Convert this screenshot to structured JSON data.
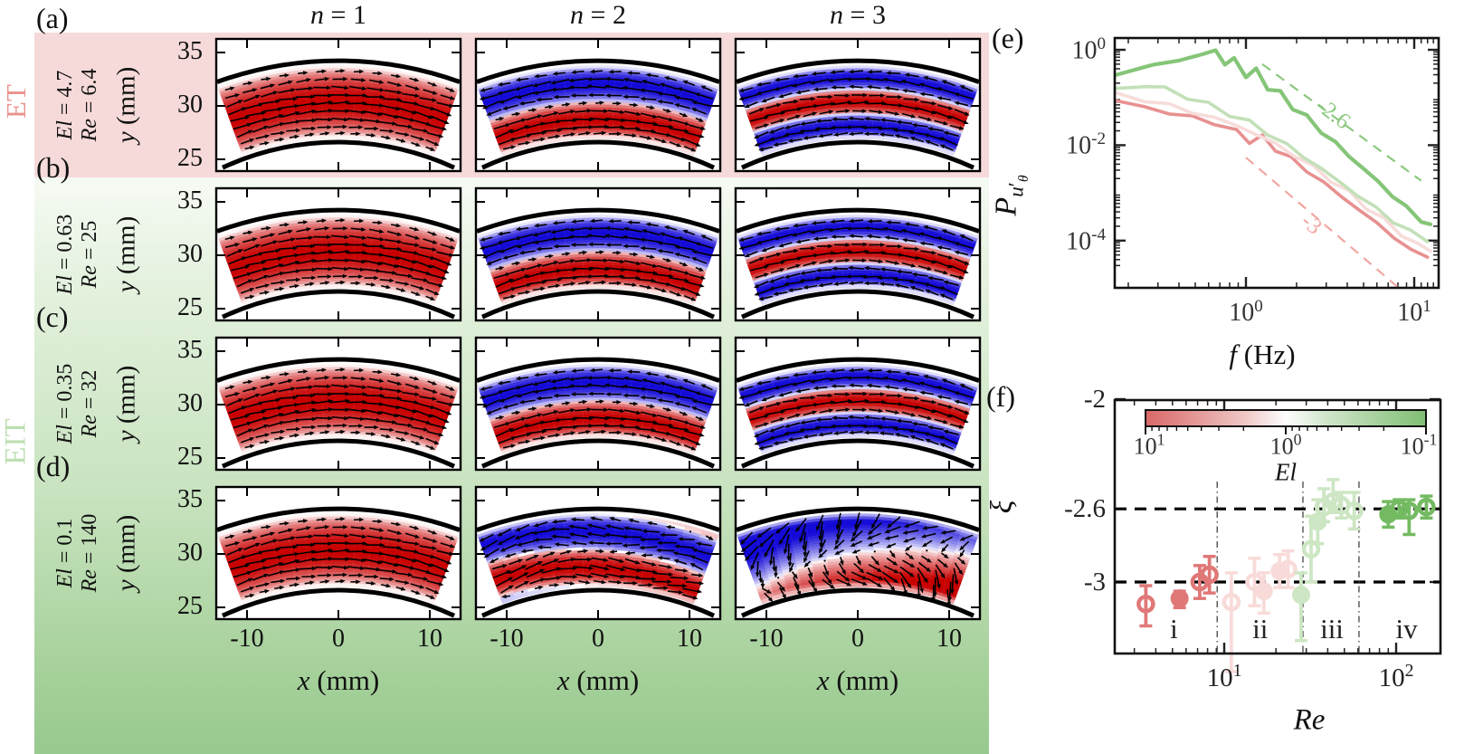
{
  "figure": {
    "column_headers": [
      "n = 1",
      "n = 2",
      "n = 3"
    ],
    "regime_et": "ET",
    "regime_eit": "EIT",
    "colors": {
      "et_label": "#ea918d",
      "eit_label": "#bcdfb0",
      "band_pink": "#f6dada",
      "band_green_top": "#f6faf4",
      "band_green_bottom": "#98c98f",
      "heat_red": "#c80000",
      "heat_blue": "#140ad7"
    },
    "ylabel": "y (mm)",
    "yticks": [
      "35",
      "30",
      "25"
    ],
    "xlabel": "x (mm)",
    "xticks": [
      "-10",
      "0",
      "10"
    ],
    "rows": [
      {
        "letter": "(a)",
        "el": "El = 4.7",
        "re": "Re = 6.4",
        "modes": [
          "R",
          "BR",
          "BRB"
        ]
      },
      {
        "letter": "(b)",
        "el": "El = 0.63",
        "re": "Re = 25",
        "modes": [
          "R",
          "BR",
          "BRB"
        ]
      },
      {
        "letter": "(c)",
        "el": "El = 0.35",
        "re": "Re = 32",
        "modes": [
          "R",
          "BR",
          "BRB"
        ]
      },
      {
        "letter": "(d)",
        "el": "El = 0.1",
        "re": "Re = 140",
        "modes": [
          "R",
          "BRt",
          "DIAG"
        ]
      }
    ]
  },
  "panel_e": {
    "letter": "(e)",
    "xlabel": "f (Hz)",
    "ylabel_parts": {
      "main": "P",
      "sub": "u",
      "prime": "′",
      "subsub": "θ"
    },
    "xtick_labels": [
      "10^0",
      "10^1"
    ],
    "ytick_labels": [
      "10^0",
      "10^-2",
      "10^-4"
    ]
  },
  "panel_f": {
    "letter": "(f)",
    "xlabel": "Re",
    "ylabel": "ξ",
    "xtick_labels": [
      "10^1",
      "10^2"
    ],
    "ytick_labels": [
      "-2",
      "-2.6",
      "-3"
    ],
    "colorbar_label": "El",
    "colorbar_tick_labels": [
      "10^1",
      "10^0",
      "10^-1"
    ],
    "region_labels": [
      "i",
      "ii",
      "iii",
      "iv"
    ]
  },
  "chart_data": [
    {
      "id": "e",
      "type": "line",
      "xlabel": "f (Hz)",
      "ylabel": "P_{u'_theta}",
      "xscale": "log",
      "yscale": "log",
      "xlim": [
        0.17,
        13.5
      ],
      "ylim": [
        2e-05,
        1.3
      ],
      "grid": false,
      "legend": "none",
      "xticks": [
        {
          "v": 1,
          "label": "10^0"
        },
        {
          "v": 10,
          "label": "10^1"
        }
      ],
      "yticks": [
        {
          "v": 1,
          "label": "10^0"
        },
        {
          "v": 0.01,
          "label": "10^-2"
        },
        {
          "v": 0.0001,
          "label": "10^-4"
        }
      ],
      "series": [
        {
          "name": "El = 4.7, Re = 6.4",
          "color": "#e89090",
          "width": 3.6,
          "amp": 0.13,
          "points": [
            [
              0.17,
              0.085
            ],
            [
              0.25,
              0.062
            ],
            [
              0.35,
              0.048
            ],
            [
              0.48,
              0.038
            ],
            [
              0.65,
              0.03
            ],
            [
              0.88,
              0.019
            ],
            [
              1.05,
              0.0125
            ],
            [
              1.25,
              0.0145
            ],
            [
              1.5,
              0.0085
            ],
            [
              1.85,
              0.0052
            ],
            [
              2.3,
              0.003
            ],
            [
              2.9,
              0.0016
            ],
            [
              3.7,
              0.00085
            ],
            [
              4.7,
              0.00044
            ],
            [
              6.0,
              0.00023
            ],
            [
              7.6,
              0.00012
            ],
            [
              9.6,
              6e-05
            ],
            [
              12.0,
              4.5e-05
            ]
          ]
        },
        {
          "name": "El = 0.63, Re = 25",
          "color": "#f7dcda",
          "width": 3.6,
          "amp": 0.13,
          "points": [
            [
              0.17,
              0.125
            ],
            [
              0.25,
              0.092
            ],
            [
              0.35,
              0.068
            ],
            [
              0.48,
              0.05
            ],
            [
              0.65,
              0.037
            ],
            [
              0.88,
              0.026
            ],
            [
              1.15,
              0.017
            ],
            [
              1.5,
              0.0105
            ],
            [
              1.95,
              0.0062
            ],
            [
              2.5,
              0.0035
            ],
            [
              3.2,
              0.0019
            ],
            [
              4.1,
              0.001
            ],
            [
              5.2,
              0.00052
            ],
            [
              6.6,
              0.00027
            ],
            [
              8.4,
              0.00014
            ],
            [
              10.5,
              8e-05
            ],
            [
              12.5,
              6e-05
            ]
          ]
        },
        {
          "name": "El = 0.35, Re = 32",
          "color": "#c3e0b8",
          "width": 3.6,
          "amp": 0.13,
          "points": [
            [
              0.17,
              0.155
            ],
            [
              0.25,
              0.185
            ],
            [
              0.33,
              0.15
            ],
            [
              0.45,
              0.105
            ],
            [
              0.6,
              0.07
            ],
            [
              0.8,
              0.046
            ],
            [
              1.05,
              0.03
            ],
            [
              1.35,
              0.018
            ],
            [
              1.75,
              0.01
            ],
            [
              2.2,
              0.0058
            ],
            [
              2.8,
              0.0032
            ],
            [
              3.6,
              0.0017
            ],
            [
              4.6,
              0.0009
            ],
            [
              5.9,
              0.00048
            ],
            [
              7.5,
              0.00026
            ],
            [
              9.5,
              0.00015
            ],
            [
              12.0,
              9.5e-05
            ]
          ]
        },
        {
          "name": "El = 0.1, Re = 140",
          "color": "#85c578",
          "width": 4.2,
          "amp": 0.15,
          "points": [
            [
              0.17,
              0.3
            ],
            [
              0.28,
              0.45
            ],
            [
              0.4,
              0.62
            ],
            [
              0.55,
              0.8
            ],
            [
              0.66,
              0.95
            ],
            [
              0.75,
              0.52
            ],
            [
              0.85,
              0.62
            ],
            [
              1.0,
              0.3
            ],
            [
              1.15,
              0.36
            ],
            [
              1.35,
              0.17
            ],
            [
              1.6,
              0.12
            ],
            [
              1.9,
              0.065
            ],
            [
              2.3,
              0.038
            ],
            [
              2.8,
              0.02
            ],
            [
              3.4,
              0.011
            ],
            [
              4.1,
              0.006
            ],
            [
              5.0,
              0.0032
            ],
            [
              6.1,
              0.0017
            ],
            [
              7.4,
              0.0009
            ],
            [
              9.0,
              0.00048
            ],
            [
              11.0,
              0.00028
            ],
            [
              12.5,
              0.00022
            ]
          ]
        }
      ],
      "guides": [
        {
          "label": "-2.6",
          "slope": -2.6,
          "color": "#8cc87e",
          "points": [
            [
              1.25,
              0.5
            ],
            [
              11,
              0.0018
            ]
          ],
          "label_at": [
            3.3,
            0.045
          ],
          "label_rot": 37
        },
        {
          "label": "-3",
          "slope": -3,
          "color": "#f2a6a2",
          "points": [
            [
              1.0,
              0.0055
            ],
            [
              8.5,
              8.8e-06
            ]
          ],
          "label_at": [
            2.45,
            0.00022
          ],
          "label_rot": 40
        }
      ]
    },
    {
      "id": "f",
      "type": "scatter",
      "xlabel": "Re",
      "ylabel": "xi",
      "xscale": "log",
      "yscale": "linear",
      "xlim": [
        2.3,
        181
      ],
      "ylim": [
        -3.45,
        -1.99
      ],
      "xticks": [
        {
          "v": 10,
          "label": "10^1"
        },
        {
          "v": 100,
          "label": "10^2"
        }
      ],
      "yticks": [
        {
          "v": -2,
          "label": "-2"
        },
        {
          "v": -2.6,
          "label": "-2.6"
        },
        {
          "v": -3,
          "label": "-3"
        }
      ],
      "hlines": [
        -2.6,
        -3
      ],
      "vlines": [
        9.1,
        28.7,
        60.8
      ],
      "regions": [
        {
          "label": "i",
          "x": 5.1
        },
        {
          "label": "ii",
          "x": 16.2
        },
        {
          "label": "iii",
          "x": 42.3
        },
        {
          "label": "iv",
          "x": 115
        }
      ],
      "colorbar": {
        "label": "El",
        "log_range": [
          1,
          -1
        ],
        "tick_labels": [
          "10^1",
          "10^0",
          "10^-1"
        ],
        "color_left": "#d96868",
        "color_mid": "#fdfdfd",
        "color_right": "#7fbe72"
      },
      "group_colors": {
        "red": "#e07878",
        "pink": "#f8dbd9",
        "pgreen": "#cde6c3",
        "green": "#74ba62"
      },
      "points": [
        {
          "re": 3.5,
          "xi": -3.12,
          "err": [
            0.1,
            0.12
          ],
          "group": "red",
          "filled": false
        },
        {
          "re": 5.5,
          "xi": -3.09,
          "err": [
            0.04,
            0.05
          ],
          "group": "red",
          "filled": true
        },
        {
          "re": 7.2,
          "xi": -3.0,
          "err": [
            0.09,
            0.09
          ],
          "group": "red",
          "filled": false
        },
        {
          "re": 8.2,
          "xi": -2.96,
          "err": [
            0.1,
            0.1
          ],
          "group": "red",
          "filled": false
        },
        {
          "re": 11,
          "xi": -3.11,
          "err": [
            0.16,
            0.38
          ],
          "group": "pink",
          "filled": false
        },
        {
          "re": 15,
          "xi": -3.0,
          "err": [
            0.13,
            0.13
          ],
          "group": "pink",
          "filled": false
        },
        {
          "re": 17,
          "xi": -3.05,
          "err": [
            0.1,
            0.12
          ],
          "group": "pink",
          "filled": true
        },
        {
          "re": 21,
          "xi": -2.94,
          "err": [
            0.09,
            0.09
          ],
          "group": "pink",
          "filled": true
        },
        {
          "re": 23.5,
          "xi": -2.93,
          "err": [
            0.1,
            0.1
          ],
          "group": "pink",
          "filled": false
        },
        {
          "re": 28,
          "xi": -3.07,
          "err": [
            0.12,
            0.25
          ],
          "group": "pgreen",
          "filled": true
        },
        {
          "re": 32,
          "xi": -2.82,
          "err": [
            0.18,
            0.18
          ],
          "group": "pgreen",
          "filled": false
        },
        {
          "re": 35,
          "xi": -2.67,
          "err": [
            0.12,
            0.12
          ],
          "group": "pgreen",
          "filled": true
        },
        {
          "re": 38,
          "xi": -2.59,
          "err": [
            0.1,
            0.08
          ],
          "group": "pgreen",
          "filled": false
        },
        {
          "re": 43,
          "xi": -2.56,
          "err": [
            0.12,
            0.06
          ],
          "group": "pgreen",
          "filled": false
        },
        {
          "re": 48,
          "xi": -2.58,
          "err": [
            0.07,
            0.07
          ],
          "group": "pgreen",
          "filled": false
        },
        {
          "re": 57,
          "xi": -2.61,
          "err": [
            0.1,
            0.1
          ],
          "group": "pgreen",
          "filled": false
        },
        {
          "re": 90,
          "xi": -2.63,
          "err": [
            0.07,
            0.07
          ],
          "group": "green",
          "filled": true
        },
        {
          "re": 104,
          "xi": -2.6,
          "err": [
            0.05,
            0.05
          ],
          "group": "green",
          "filled": false
        },
        {
          "re": 119,
          "xi": -2.61,
          "err": [
            0.06,
            0.13
          ],
          "group": "green",
          "filled": false
        },
        {
          "re": 150,
          "xi": -2.59,
          "err": [
            0.06,
            0.06
          ],
          "group": "green",
          "filled": false
        }
      ]
    },
    {
      "id": "flow-maps",
      "type": "heatmap",
      "description": "4x3 grid of azimuthal-velocity mode maps in an annular gap, y 24-36 mm, x -13-13 mm; red = +u, blue = -u",
      "rows": [
        "El = 4.7 / Re = 6.4",
        "El = 0.63 / Re = 25",
        "El = 0.35 / Re = 32",
        "El = 0.1 / Re = 140"
      ],
      "columns": [
        "n = 1",
        "n = 2",
        "n = 3"
      ],
      "band_patterns": [
        [
          "red"
        ],
        [
          "blue",
          "red"
        ],
        [
          "blue",
          "red",
          "blue"
        ]
      ],
      "row_d_n3": "diagonal blue(upper-left)/red(lower-right) disordered field"
    }
  ]
}
